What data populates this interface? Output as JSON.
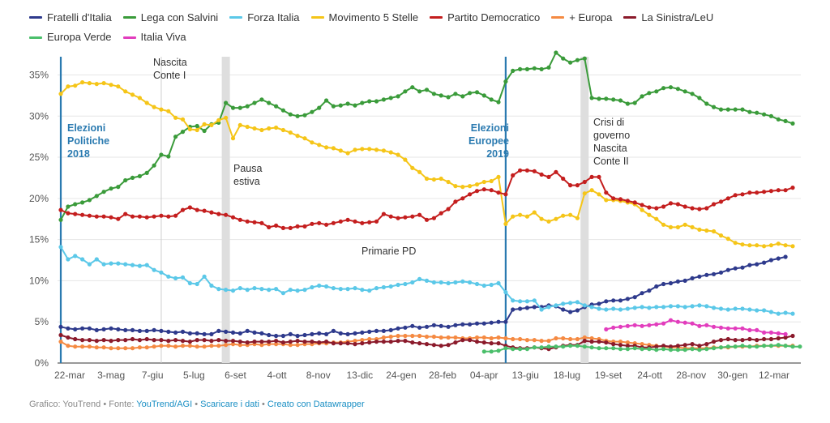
{
  "chart_data": {
    "type": "line",
    "title": "",
    "xlabel": "",
    "ylabel": "",
    "ylim": [
      0,
      38
    ],
    "yticks": [
      "0%",
      "5%",
      "10%",
      "15%",
      "20%",
      "25%",
      "30%",
      "35%"
    ],
    "xticks": [
      "22-mar",
      "3-mag",
      "7-giu",
      "5-lug",
      "6-set",
      "4-ott",
      "8-nov",
      "13-dic",
      "24-gen",
      "28-feb",
      "04-apr",
      "13-giu",
      "18-lug",
      "19-set",
      "24-ott",
      "28-nov",
      "30-gen",
      "12-mar"
    ],
    "grid": true,
    "legend_position": "top",
    "series": [
      {
        "name": "Fratelli d'Italia",
        "color": "#2e3a8c",
        "start": 0,
        "values": [
          4.4,
          4.2,
          4.1,
          4.2,
          4.2,
          4.0,
          4.1,
          4.2,
          4.1,
          4.0,
          4.0,
          3.9,
          3.9,
          4.0,
          3.9,
          3.8,
          3.7,
          3.8,
          3.6,
          3.6,
          3.5,
          3.5,
          3.9,
          3.8,
          3.7,
          3.6,
          3.9,
          3.7,
          3.6,
          3.4,
          3.3,
          3.3,
          3.5,
          3.3,
          3.4,
          3.5,
          3.6,
          3.5,
          3.9,
          3.6,
          3.5,
          3.6,
          3.7,
          3.8,
          3.9,
          3.9,
          4.0,
          4.2,
          4.3,
          4.5,
          4.3,
          4.4,
          4.6,
          4.5,
          4.4,
          4.6,
          4.7,
          4.7,
          4.8,
          4.8,
          4.9,
          5.0,
          5.0,
          6.5,
          6.6,
          6.7,
          6.8,
          6.8,
          7.0,
          6.9,
          6.5,
          6.2,
          6.4,
          6.8,
          7.1,
          7.2,
          7.5,
          7.6,
          7.6,
          7.8,
          8.0,
          8.5,
          8.8,
          9.3,
          9.6,
          9.7,
          9.9,
          10.0,
          10.3,
          10.5,
          10.7,
          10.8,
          11.0,
          11.3,
          11.5,
          11.6,
          11.9,
          12.0,
          12.2,
          12.5,
          12.7,
          12.9
        ]
      },
      {
        "name": "Lega con Salvini",
        "color": "#3a9b3a",
        "start": 0,
        "values": [
          17.4,
          19.0,
          19.3,
          19.5,
          19.8,
          20.3,
          20.8,
          21.2,
          21.4,
          22.2,
          22.5,
          22.7,
          23.1,
          24.0,
          25.3,
          25.1,
          27.5,
          28.1,
          28.7,
          28.8,
          28.2,
          29.0,
          29.2,
          31.6,
          31.0,
          31.0,
          31.2,
          31.6,
          32.0,
          31.6,
          31.2,
          30.7,
          30.2,
          30.0,
          30.1,
          30.5,
          31.0,
          31.9,
          31.2,
          31.3,
          31.5,
          31.3,
          31.6,
          31.8,
          31.8,
          32.0,
          32.2,
          32.4,
          33.0,
          33.5,
          33.0,
          33.2,
          32.7,
          32.5,
          32.3,
          32.7,
          32.4,
          32.8,
          32.9,
          32.5,
          32.0,
          31.7,
          34.2,
          35.5,
          35.7,
          35.7,
          35.8,
          35.7,
          35.9,
          37.7,
          37.0,
          36.5,
          36.8,
          37.0,
          32.2,
          32.1,
          32.1,
          32.0,
          31.9,
          31.5,
          31.6,
          32.4,
          32.8,
          33.0,
          33.4,
          33.5,
          33.3,
          33.0,
          32.7,
          32.2,
          31.5,
          31.1,
          30.8,
          30.8,
          30.8,
          30.8,
          30.5,
          30.4,
          30.2,
          30.0,
          29.6,
          29.4,
          29.1
        ]
      },
      {
        "name": "Forza Italia",
        "color": "#5bc8e8",
        "start": 0,
        "values": [
          14.1,
          12.6,
          13.0,
          12.6,
          12.0,
          12.6,
          12.0,
          12.1,
          12.1,
          12.0,
          11.9,
          11.8,
          11.9,
          11.3,
          11.0,
          10.5,
          10.3,
          10.4,
          9.7,
          9.6,
          10.5,
          9.4,
          9.0,
          8.9,
          8.8,
          9.1,
          8.9,
          9.1,
          9.0,
          8.9,
          9.0,
          8.5,
          8.9,
          8.8,
          8.9,
          9.2,
          9.4,
          9.3,
          9.1,
          9.0,
          9.0,
          9.1,
          8.9,
          8.8,
          9.1,
          9.2,
          9.3,
          9.5,
          9.6,
          9.8,
          10.2,
          10.0,
          9.8,
          9.8,
          9.7,
          9.8,
          9.9,
          9.8,
          9.6,
          9.4,
          9.5,
          9.7,
          8.6,
          7.6,
          7.5,
          7.5,
          7.6,
          6.5,
          6.8,
          7.0,
          7.2,
          7.3,
          7.4,
          7.0,
          6.8,
          6.6,
          6.5,
          6.6,
          6.5,
          6.6,
          6.7,
          6.8,
          6.7,
          6.8,
          6.8,
          6.9,
          6.9,
          6.8,
          6.9,
          7.0,
          6.9,
          6.7,
          6.6,
          6.5,
          6.6,
          6.6,
          6.5,
          6.4,
          6.4,
          6.2,
          6.0,
          6.1,
          6.0
        ]
      },
      {
        "name": "Movimento 5 Stelle",
        "color": "#f5c518",
        "start": 0,
        "values": [
          32.7,
          33.6,
          33.7,
          34.1,
          34.0,
          33.9,
          34.0,
          33.8,
          33.6,
          33.0,
          32.6,
          32.2,
          31.6,
          31.1,
          30.8,
          30.6,
          29.8,
          29.6,
          28.4,
          28.3,
          29.0,
          28.9,
          29.5,
          29.8,
          27.3,
          28.9,
          28.7,
          28.5,
          28.3,
          28.5,
          28.6,
          28.3,
          28.0,
          27.6,
          27.3,
          26.8,
          26.5,
          26.2,
          26.1,
          25.8,
          25.5,
          25.9,
          26.0,
          26.0,
          25.9,
          25.8,
          25.6,
          25.3,
          24.7,
          23.7,
          23.2,
          22.4,
          22.3,
          22.4,
          22.0,
          21.5,
          21.4,
          21.5,
          21.7,
          22.0,
          22.1,
          22.6,
          16.9,
          17.8,
          18.0,
          17.8,
          18.3,
          17.5,
          17.2,
          17.5,
          17.9,
          18.0,
          17.6,
          20.6,
          21.0,
          20.5,
          19.8,
          19.8,
          19.7,
          19.5,
          19.3,
          18.6,
          18.0,
          17.5,
          16.8,
          16.5,
          16.5,
          16.8,
          16.5,
          16.2,
          16.1,
          16.0,
          15.5,
          15.1,
          14.6,
          14.4,
          14.3,
          14.3,
          14.2,
          14.3,
          14.5,
          14.3,
          14.2
        ]
      },
      {
        "name": "Partito Democratico",
        "color": "#c41e1e",
        "start": 0,
        "values": [
          18.6,
          18.2,
          18.1,
          18.0,
          17.9,
          17.8,
          17.8,
          17.7,
          17.5,
          18.1,
          17.8,
          17.8,
          17.7,
          17.8,
          17.9,
          17.8,
          17.9,
          18.6,
          18.9,
          18.6,
          18.5,
          18.3,
          18.1,
          18.0,
          17.7,
          17.4,
          17.2,
          17.1,
          17.0,
          16.5,
          16.7,
          16.4,
          16.4,
          16.6,
          16.6,
          16.9,
          17.0,
          16.8,
          17.0,
          17.2,
          17.4,
          17.2,
          17.0,
          17.1,
          17.2,
          18.1,
          17.8,
          17.6,
          17.7,
          17.8,
          18.0,
          17.4,
          17.6,
          18.2,
          18.7,
          19.6,
          20.0,
          20.5,
          20.9,
          21.1,
          21.0,
          20.7,
          20.5,
          22.8,
          23.4,
          23.4,
          23.3,
          22.9,
          22.6,
          23.2,
          22.4,
          21.6,
          21.6,
          22.0,
          22.6,
          22.6,
          20.7,
          20.0,
          19.9,
          19.7,
          19.5,
          19.2,
          18.9,
          18.8,
          19.0,
          19.4,
          19.3,
          19.0,
          18.8,
          18.7,
          18.8,
          19.3,
          19.6,
          20.0,
          20.4,
          20.5,
          20.7,
          20.7,
          20.8,
          20.9,
          21.0,
          21.0,
          21.3
        ]
      },
      {
        "name": "+ Europa",
        "color": "#f58a42",
        "start": 0,
        "values": [
          2.6,
          2.1,
          2.0,
          2.0,
          2.0,
          1.9,
          1.9,
          1.8,
          1.8,
          1.8,
          1.8,
          1.9,
          1.9,
          2.0,
          2.1,
          2.1,
          2.0,
          2.1,
          2.1,
          2.0,
          2.0,
          2.1,
          2.1,
          2.2,
          2.3,
          2.2,
          2.2,
          2.3,
          2.2,
          2.3,
          2.3,
          2.3,
          2.2,
          2.2,
          2.3,
          2.3,
          2.4,
          2.4,
          2.5,
          2.5,
          2.6,
          2.7,
          2.8,
          2.9,
          2.9,
          3.1,
          3.2,
          3.3,
          3.3,
          3.3,
          3.3,
          3.2,
          3.2,
          3.1,
          3.1,
          3.1,
          3.0,
          3.0,
          3.1,
          3.1,
          3.0,
          3.1,
          3.0,
          2.9,
          2.9,
          2.8,
          2.8,
          2.7,
          2.7,
          3.0,
          3.0,
          2.9,
          2.9,
          3.1,
          3.0,
          2.9,
          2.7,
          2.6,
          2.6,
          2.5,
          2.4,
          2.3,
          2.2,
          2.1,
          2.0,
          1.9,
          1.9,
          1.8,
          1.8,
          1.8,
          1.8,
          1.9,
          1.9,
          1.9,
          2.0,
          2.0,
          2.0,
          2.1,
          2.1,
          2.1,
          2.1,
          2.1,
          2.1
        ]
      },
      {
        "name": "La Sinistra/LeU",
        "color": "#8b1a2b",
        "start": 0,
        "values": [
          3.4,
          3.1,
          2.9,
          2.8,
          2.8,
          2.7,
          2.8,
          2.7,
          2.8,
          2.8,
          2.9,
          2.8,
          2.9,
          2.8,
          2.8,
          2.7,
          2.8,
          2.7,
          2.6,
          2.8,
          2.8,
          2.7,
          2.8,
          2.7,
          2.7,
          2.6,
          2.5,
          2.6,
          2.6,
          2.6,
          2.7,
          2.5,
          2.6,
          2.7,
          2.6,
          2.6,
          2.5,
          2.6,
          2.4,
          2.4,
          2.4,
          2.3,
          2.4,
          2.5,
          2.6,
          2.6,
          2.6,
          2.7,
          2.7,
          2.5,
          2.4,
          2.3,
          2.2,
          2.1,
          2.2,
          2.5,
          2.8,
          2.8,
          2.6,
          2.5,
          2.4,
          2.4,
          2.1,
          1.9,
          1.8,
          1.8,
          1.9,
          1.8,
          1.7,
          1.9,
          2.1,
          2.2,
          2.2,
          2.7,
          2.6,
          2.6,
          2.5,
          2.3,
          2.2,
          2.1,
          2.1,
          1.9,
          1.9,
          2.0,
          2.1,
          2.0,
          2.1,
          2.2,
          2.3,
          2.1,
          2.3,
          2.6,
          2.8,
          2.9,
          2.8,
          2.8,
          2.9,
          2.8,
          2.9,
          2.9,
          3.0,
          3.1,
          3.3
        ]
      },
      {
        "name": "Europa Verde",
        "color": "#4bbf6b",
        "start": 59,
        "values": [
          1.4,
          1.4,
          1.5,
          1.8,
          1.7,
          1.7,
          1.7,
          1.9,
          1.9,
          2.0,
          2.0,
          2.0,
          2.1,
          2.1,
          2.0,
          1.9,
          1.8,
          1.8,
          1.8,
          1.7,
          1.7,
          1.8,
          1.7,
          1.7,
          1.6,
          1.7,
          1.6,
          1.6,
          1.6,
          1.7,
          1.6,
          1.7,
          1.8,
          1.9,
          2.0,
          2.0,
          2.1,
          2.0,
          2.0,
          2.1,
          2.1,
          2.2,
          2.1,
          2.0,
          2.0
        ]
      },
      {
        "name": "Italia Viva",
        "color": "#e23dbd",
        "start": 76,
        "values": [
          4.1,
          4.3,
          4.4,
          4.5,
          4.6,
          4.5,
          4.6,
          4.7,
          4.8,
          5.2,
          5.0,
          4.9,
          4.8,
          4.5,
          4.6,
          4.4,
          4.3,
          4.2,
          4.2,
          4.2,
          4.0,
          4.0,
          3.7,
          3.7,
          3.6,
          3.5
        ]
      }
    ],
    "vertical_markers": [
      {
        "label": "Elezioni Politiche 2018",
        "index": 0,
        "style": "line"
      },
      {
        "label": "Elezioni Europee 2019",
        "index": 62,
        "style": "line"
      },
      {
        "label": "Nascita Conte I",
        "index": 14,
        "style": "thin"
      },
      {
        "label": "Pausa estiva",
        "index": 23,
        "style": "band"
      },
      {
        "label": "Crisi di governo Nascita Conte II",
        "index": 73,
        "style": "band"
      }
    ],
    "annotations": [
      {
        "label": "Primarie PD",
        "index": 49
      }
    ]
  },
  "annotation_text": {
    "elezioni_politiche": [
      "Elezioni",
      "Politiche",
      "2018"
    ],
    "elezioni_europee": [
      "Elezioni",
      "Europee",
      "2019"
    ],
    "nascita_conte": [
      "Nascita",
      "Conte I"
    ],
    "pausa_estiva": [
      "Pausa",
      "estiva"
    ],
    "crisi_governo": [
      "Crisi di",
      "governo",
      "Nascita",
      "Conte II"
    ],
    "primarie_pd": "Primarie PD"
  },
  "footer": {
    "prefix": "Grafico: YouTrend • Fonte: ",
    "source": "YouTrend/AGI",
    "sep1": " • ",
    "download": "Scaricare i dati",
    "sep2": " • ",
    "made_with": "Creato con Datawrapper"
  },
  "colors": {
    "grid": "#e6e6e6",
    "marker_line": "#2a7ab0",
    "band": "#dedede",
    "axis_text": "#555555"
  }
}
